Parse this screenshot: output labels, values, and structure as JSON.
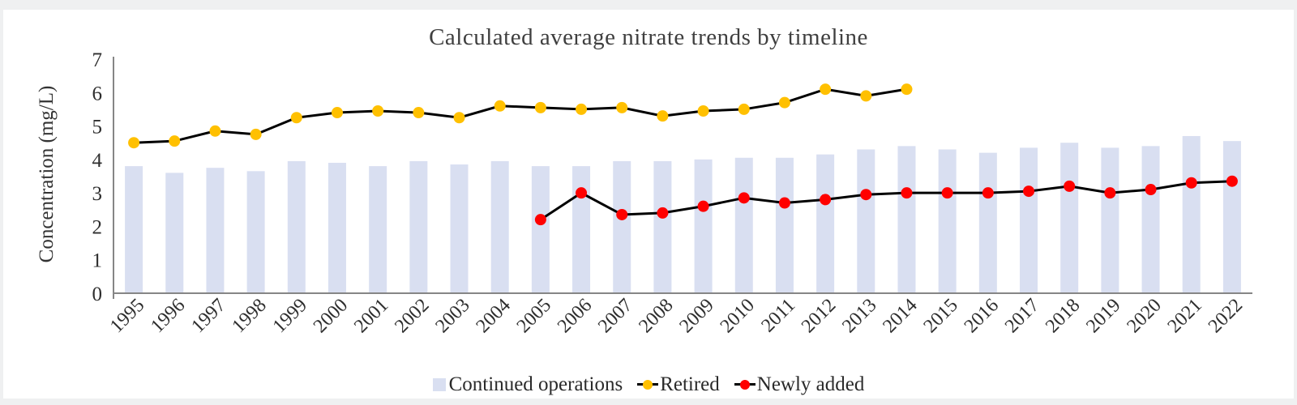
{
  "page": {
    "background_color": "#eff0f1",
    "card_color": "#ffffff"
  },
  "chart_data": {
    "type": "bar+line",
    "title": "Calculated average nitrate trends by timeline",
    "xlabel": "",
    "ylabel": "Concentration (mg/L)",
    "ylim": [
      0,
      7
    ],
    "yticks": [
      0,
      1,
      2,
      3,
      4,
      5,
      6,
      7
    ],
    "grid": false,
    "legend_position": "bottom",
    "axis_color": "#868686",
    "text_color": "#2e2e2e",
    "categories": [
      "1995",
      "1996",
      "1997",
      "1998",
      "1999",
      "2000",
      "2001",
      "2002",
      "2003",
      "2004",
      "2005",
      "2006",
      "2007",
      "2008",
      "2009",
      "2010",
      "2011",
      "2012",
      "2013",
      "2014",
      "2015",
      "2016",
      "2017",
      "2018",
      "2019",
      "2020",
      "2021",
      "2022"
    ],
    "series": [
      {
        "name": "Continued operations",
        "type": "bar",
        "color": "#D9DFF1",
        "values": [
          3.8,
          3.6,
          3.75,
          3.65,
          3.95,
          3.9,
          3.8,
          3.95,
          3.85,
          3.95,
          3.8,
          3.8,
          3.95,
          3.95,
          4.0,
          4.05,
          4.05,
          4.15,
          4.3,
          4.4,
          4.3,
          4.2,
          4.35,
          4.5,
          4.35,
          4.4,
          4.7,
          4.55
        ]
      },
      {
        "name": "Retired",
        "type": "line",
        "marker_color": "#FFC000",
        "line_color": "#000000",
        "values": [
          4.5,
          4.55,
          4.85,
          4.75,
          5.25,
          5.4,
          5.45,
          5.4,
          5.25,
          5.6,
          5.55,
          5.5,
          5.55,
          5.3,
          5.45,
          5.5,
          5.7,
          6.1,
          5.9,
          6.1,
          null,
          null,
          null,
          null,
          null,
          null,
          null,
          null
        ]
      },
      {
        "name": "Newly added",
        "type": "line",
        "marker_color": "#FF0000",
        "line_color": "#000000",
        "values": [
          null,
          null,
          null,
          null,
          null,
          null,
          null,
          null,
          null,
          null,
          2.2,
          3.0,
          2.35,
          2.4,
          2.6,
          2.85,
          2.7,
          2.8,
          2.95,
          3.0,
          3.0,
          3.0,
          3.05,
          3.2,
          3.0,
          3.1,
          3.3,
          3.35
        ]
      }
    ]
  }
}
